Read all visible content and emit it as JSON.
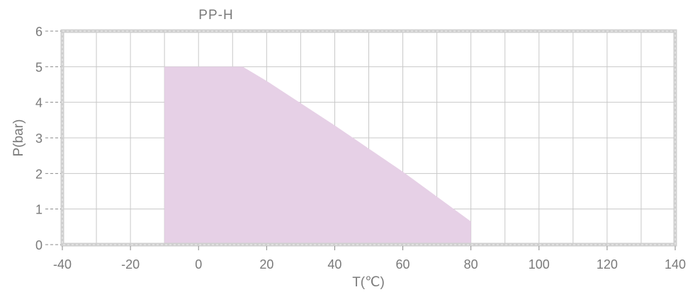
{
  "chart_data": {
    "type": "area",
    "title": "PP-H",
    "xlabel": "T(℃)",
    "ylabel": "P(bar)",
    "xlim": [
      -40,
      140
    ],
    "ylim": [
      0,
      6
    ],
    "x_ticks": [
      "-40",
      "-20",
      "0",
      "20",
      "40",
      "60",
      "80",
      "100",
      "120",
      "140"
    ],
    "y_ticks": [
      "0",
      "1",
      "2",
      "3",
      "4",
      "5",
      "6"
    ],
    "grid": true,
    "series": [
      {
        "x": [
          -10,
          -10,
          13,
          20,
          40,
          60,
          80,
          80
        ],
        "y": [
          0,
          5,
          5,
          4.6,
          3.35,
          2.05,
          0.65,
          0
        ],
        "color": "#e6d0e6"
      }
    ]
  }
}
